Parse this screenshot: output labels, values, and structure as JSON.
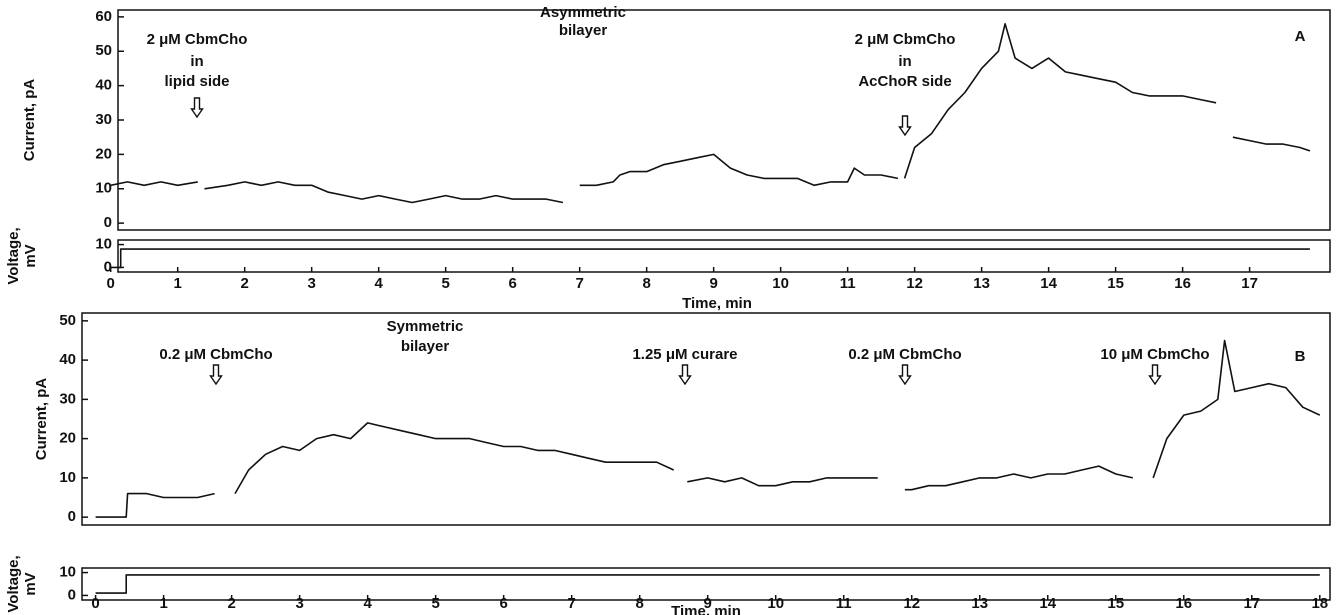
{
  "chart_data": [
    {
      "type": "line",
      "label": "A",
      "y_label": "Current, pA",
      "annotations": [
        [
          "2 μM CbmCho",
          "in",
          "lipid side"
        ],
        [
          "Asymmetric",
          "bilayer"
        ],
        [
          "2 μM CbmCho",
          "in",
          "AcChoR side"
        ]
      ],
      "x": [
        0,
        0.25,
        0.5,
        0.75,
        1,
        1.3,
        1.35,
        1.4,
        1.75,
        2,
        2.25,
        2.5,
        2.75,
        3,
        3.25,
        3.5,
        3.75,
        4,
        4.25,
        4.5,
        4.75,
        5,
        5.25,
        5.5,
        5.75,
        6,
        6.25,
        6.5,
        6.75,
        6.95,
        7,
        7.25,
        7.5,
        7.6,
        7.75,
        8,
        8.25,
        8.5,
        8.75,
        9,
        9.25,
        9.5,
        9.75,
        10,
        10.25,
        10.5,
        10.75,
        11,
        11.1,
        11.25,
        11.5,
        11.75,
        11.8,
        11.85,
        12,
        12.25,
        12.5,
        12.75,
        13,
        13.25,
        13.35,
        13.5,
        13.75,
        14,
        14.25,
        14.5,
        14.75,
        15,
        15.25,
        15.5,
        15.75,
        16,
        16.25,
        16.5,
        16.55,
        16.75,
        17,
        17.25,
        17.5,
        17.75,
        17.9
      ],
      "values": [
        11,
        12,
        11,
        12,
        11,
        12,
        null,
        10,
        11,
        12,
        11,
        12,
        11,
        11,
        9,
        8,
        7,
        8,
        7,
        6,
        7,
        8,
        7,
        7,
        8,
        7,
        7,
        7,
        6,
        null,
        11,
        11,
        12,
        14,
        15,
        15,
        17,
        18,
        19,
        20,
        16,
        14,
        13,
        13,
        13,
        11,
        12,
        12,
        16,
        14,
        14,
        13,
        null,
        13,
        22,
        26,
        33,
        38,
        45,
        50,
        58,
        48,
        45,
        48,
        44,
        43,
        42,
        41,
        38,
        37,
        37,
        37,
        36,
        35,
        null,
        25,
        24,
        23,
        23,
        22,
        21
      ],
      "color": "#111111",
      "xlim": [
        -0.1,
        18.2
      ],
      "ylim": [
        -2,
        62
      ],
      "yticks": [
        0,
        10,
        20,
        30,
        40,
        50,
        60
      ]
    },
    {
      "type": "line",
      "y_label": [
        "Voltage,",
        "mV"
      ],
      "x_label": "Time, min",
      "x": [
        0,
        0.15,
        0.15,
        17.9
      ],
      "values": [
        0,
        0,
        8,
        8
      ],
      "color": "#111111",
      "xlim": [
        -0.1,
        18.2
      ],
      "ylim": [
        -2,
        12
      ],
      "yticks": [
        0,
        10
      ],
      "xticks": [
        0,
        1,
        2,
        3,
        4,
        5,
        6,
        7,
        8,
        9,
        10,
        11,
        12,
        13,
        14,
        15,
        16,
        17
      ]
    },
    {
      "type": "line",
      "label": "B",
      "y_label": "Current, pA",
      "annotations": [
        [
          "0.2 μM CbmCho"
        ],
        [
          "Symmetric",
          "bilayer"
        ],
        [
          "1.25 μM curare"
        ],
        [
          "0.2 μM CbmCho"
        ],
        [
          "10 μM CbmCho"
        ]
      ],
      "x": [
        0,
        0.25,
        0.45,
        0.47,
        0.75,
        1,
        1.25,
        1.5,
        1.75,
        1.8,
        2.05,
        2.25,
        2.5,
        2.75,
        3,
        3.25,
        3.5,
        3.75,
        4,
        4.25,
        4.5,
        4.75,
        5,
        5.25,
        5.5,
        5.75,
        6,
        6.25,
        6.5,
        6.75,
        7,
        7.25,
        7.5,
        7.75,
        8,
        8.25,
        8.5,
        8.6,
        8.7,
        9,
        9.25,
        9.5,
        9.75,
        10,
        10.25,
        10.5,
        10.75,
        11,
        11.25,
        11.5,
        11.7,
        11.9,
        12,
        12.25,
        12.5,
        12.75,
        13,
        13.25,
        13.5,
        13.75,
        14,
        14.25,
        14.5,
        14.75,
        15,
        15.25,
        15.3,
        15.55,
        15.75,
        16,
        16.25,
        16.5,
        16.6,
        16.75,
        17,
        17.25,
        17.5,
        17.75,
        18
      ],
      "values": [
        0,
        0,
        0,
        6,
        6,
        5,
        5,
        5,
        6,
        null,
        6,
        12,
        16,
        18,
        17,
        20,
        21,
        20,
        24,
        23,
        22,
        21,
        20,
        20,
        20,
        19,
        18,
        18,
        17,
        17,
        16,
        15,
        14,
        14,
        14,
        14,
        12,
        null,
        9,
        10,
        9,
        10,
        8,
        8,
        9,
        9,
        10,
        10,
        10,
        10,
        null,
        7,
        7,
        8,
        8,
        9,
        10,
        10,
        11,
        10,
        11,
        11,
        12,
        13,
        11,
        10,
        null,
        10,
        20,
        26,
        27,
        30,
        45,
        32,
        33,
        34,
        33,
        28,
        26
      ],
      "color": "#111111",
      "xlim": [
        -0.2,
        18.15
      ],
      "ylim": [
        -2,
        52
      ],
      "yticks": [
        0,
        10,
        20,
        30,
        40,
        50
      ]
    },
    {
      "type": "line",
      "y_label": [
        "Voltage,",
        "mV"
      ],
      "x_label": "Time, min",
      "x": [
        0,
        0.45,
        0.45,
        18
      ],
      "values": [
        1,
        1,
        9,
        9
      ],
      "color": "#111111",
      "xlim": [
        -0.2,
        18.15
      ],
      "ylim": [
        -2,
        12
      ],
      "yticks": [
        0,
        10
      ],
      "xticks": [
        0,
        1,
        2,
        3,
        4,
        5,
        6,
        7,
        8,
        9,
        10,
        11,
        12,
        13,
        14,
        15,
        16,
        17,
        18
      ]
    }
  ]
}
